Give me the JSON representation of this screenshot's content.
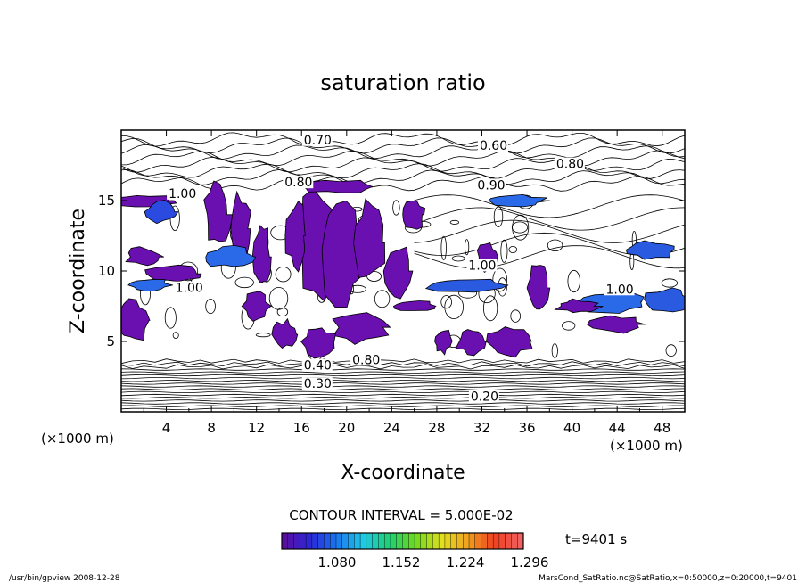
{
  "chart_data": {
    "type": "heatmap",
    "title": "saturation ratio",
    "xlabel": "X-coordinate",
    "ylabel": "Z-coordinate",
    "x_unit": "(×1000 m)",
    "y_unit": "(×1000 m)",
    "xlim": [
      0,
      50
    ],
    "ylim": [
      0,
      20
    ],
    "x_ticks": [
      4,
      8,
      12,
      16,
      20,
      24,
      28,
      32,
      36,
      40,
      44,
      48
    ],
    "y_ticks": [
      5,
      10,
      15
    ],
    "contour_interval_text": "CONTOUR INTERVAL = 5.000E-02",
    "time_text": "t=9401 s",
    "colorbar": {
      "tick_labels": [
        "1.080",
        "1.152",
        "1.224",
        "1.296"
      ],
      "colors": [
        "#5a0ea0",
        "#2a28d8",
        "#1a78f0",
        "#20c8e8",
        "#20d070",
        "#70d820",
        "#e0e020",
        "#f0a020",
        "#f04020",
        "#f06060"
      ]
    },
    "contour_labels": [
      {
        "text": "0.70",
        "x": 16.2,
        "y": 19.0
      },
      {
        "text": "0.60",
        "x": 31.8,
        "y": 18.6
      },
      {
        "text": "0.80",
        "x": 38.6,
        "y": 17.3
      },
      {
        "text": "0.80",
        "x": 14.5,
        "y": 16.0
      },
      {
        "text": "0.90",
        "x": 31.6,
        "y": 15.8
      },
      {
        "text": "1.00",
        "x": 4.2,
        "y": 15.2
      },
      {
        "text": "1.00",
        "x": 30.8,
        "y": 10.1
      },
      {
        "text": "1.00",
        "x": 4.8,
        "y": 8.5
      },
      {
        "text": "1.00",
        "x": 43.0,
        "y": 8.4
      },
      {
        "text": "0.80",
        "x": 20.5,
        "y": 3.4
      },
      {
        "text": "0.40",
        "x": 16.2,
        "y": 3.0
      },
      {
        "text": "0.30",
        "x": 16.2,
        "y": 1.7
      },
      {
        "text": "0.20",
        "x": 31.0,
        "y": 0.8
      }
    ],
    "footer_left": "/usr/bin/gpview   2008-12-28",
    "footer_right": "MarsCond_SatRatio.nc@SatRatio,x=0:50000,z=0:20000,t=9401"
  }
}
